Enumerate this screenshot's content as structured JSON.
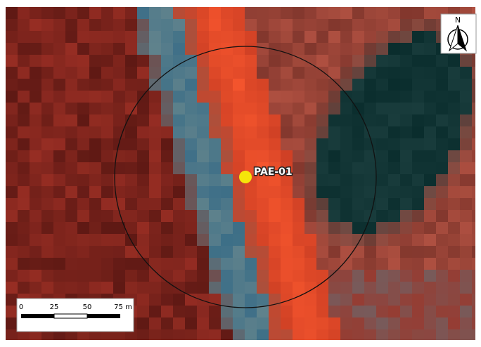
{
  "map": {
    "north_label": "N",
    "point_label": "PAE-01",
    "scale_bar": {
      "labels": [
        "0",
        "25",
        "50",
        "75 m"
      ]
    }
  }
}
